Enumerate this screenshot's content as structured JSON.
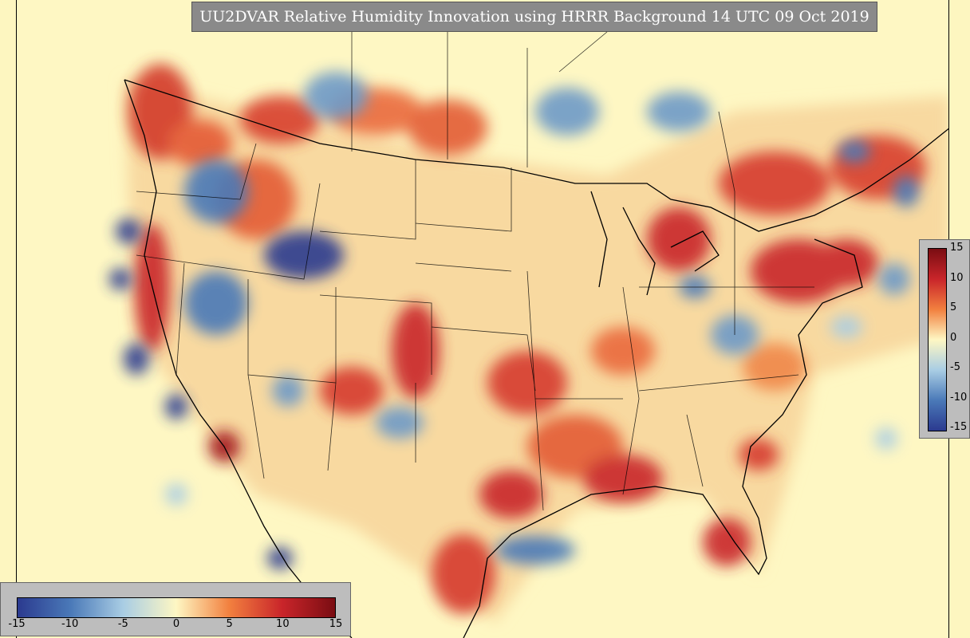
{
  "title": "UU2DVAR Relative Humidity Innovation using HRRR Background 14 UTC 09 Oct 2019",
  "colorbar_vertical": {
    "ticks": [
      "15",
      "10",
      "5",
      "0",
      "-5",
      "-10",
      "-15"
    ]
  },
  "colorbar_horizontal": {
    "ticks": [
      "-15",
      "-10",
      "-5",
      "0",
      "5",
      "10",
      "15"
    ]
  },
  "colors": {
    "deep_blue": "#2b3a8f",
    "blue": "#4a79b8",
    "light_blue": "#a9cde4",
    "pale": "#fef7c3",
    "orange": "#f2803f",
    "red": "#c9252a",
    "dark_red": "#7a0d12"
  }
}
